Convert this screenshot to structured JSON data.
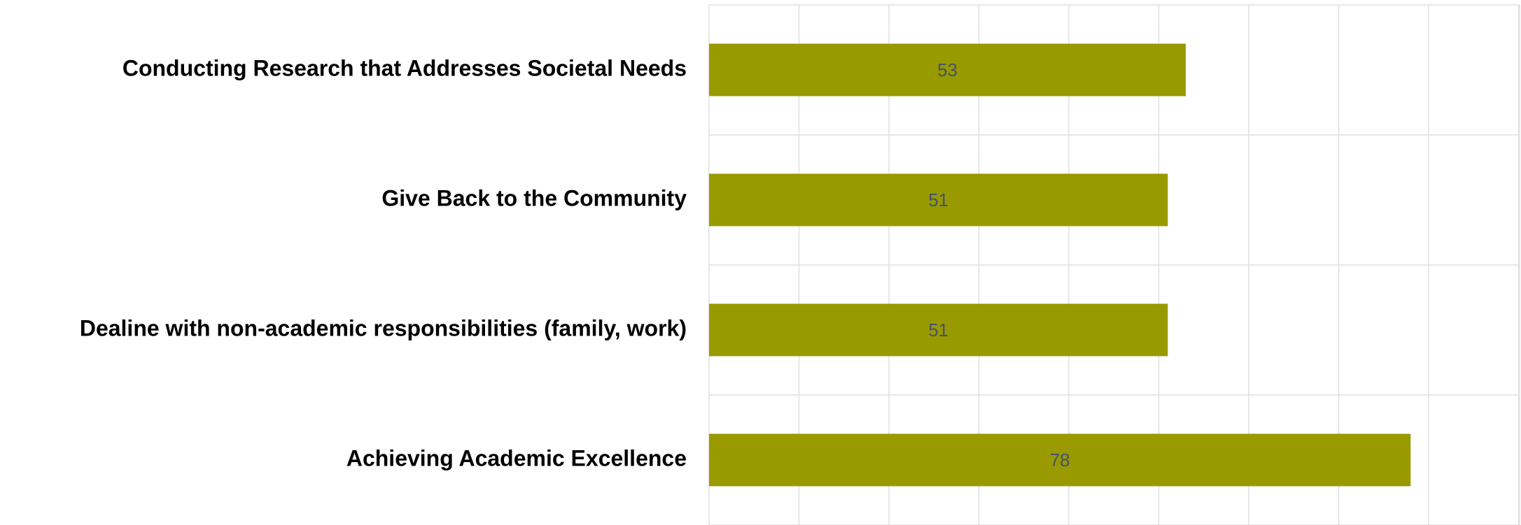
{
  "chart_data": {
    "type": "bar",
    "orientation": "horizontal",
    "categories": [
      "Conducting Research that Addresses Societal Needs",
      "Give Back to the Community",
      "Dealine with non-academic responsibilities (family, work)",
      "Achieving Academic Excellence"
    ],
    "values": [
      53,
      51,
      51,
      78
    ],
    "color": "#999900",
    "xlim": [
      0,
      90
    ],
    "xticks": [
      0,
      10,
      20,
      30,
      40,
      50,
      60,
      70,
      80,
      90
    ],
    "grid": true
  }
}
